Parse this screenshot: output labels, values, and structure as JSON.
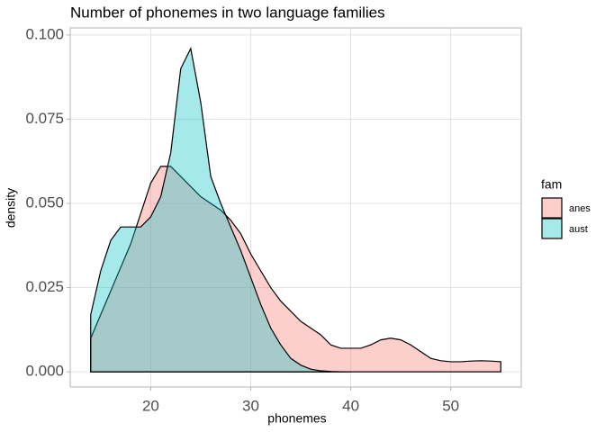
{
  "chart_data": {
    "type": "area",
    "title": "Number of phonemes in two language families",
    "x_label": "phonemes",
    "y_label": "density",
    "legend_title": "fam",
    "legend_position": "right",
    "x": [
      14,
      15,
      16,
      17,
      18,
      19,
      20,
      21,
      22,
      23,
      24,
      25,
      26,
      27,
      28,
      29,
      30,
      31,
      32,
      33,
      34,
      35,
      36,
      37,
      38,
      39,
      40,
      41,
      42,
      43,
      44,
      45,
      46,
      47,
      48,
      49,
      50,
      51,
      52,
      53,
      54,
      55
    ],
    "series": [
      {
        "name": "anes",
        "color": "#F8766D",
        "values": [
          0.01,
          0.017,
          0.024,
          0.031,
          0.038,
          0.047,
          0.056,
          0.061,
          0.061,
          0.058,
          0.055,
          0.052,
          0.05,
          0.048,
          0.045,
          0.041,
          0.035,
          0.03,
          0.025,
          0.021,
          0.018,
          0.015,
          0.013,
          0.011,
          0.008,
          0.007,
          0.007,
          0.007,
          0.008,
          0.0095,
          0.01,
          0.0095,
          0.008,
          0.006,
          0.004,
          0.0033,
          0.003,
          0.003,
          0.0032,
          0.0033,
          0.0032,
          0.003
        ]
      },
      {
        "name": "aust",
        "color": "#00BFC4",
        "values": [
          0.017,
          0.03,
          0.039,
          0.043,
          0.043,
          0.043,
          0.046,
          0.052,
          0.065,
          0.09,
          0.096,
          0.08,
          0.058,
          0.05,
          0.043,
          0.036,
          0.028,
          0.02,
          0.013,
          0.008,
          0.004,
          0.002,
          0.0008,
          0.0003,
          0.0001,
          0,
          0,
          null,
          null,
          null,
          null,
          null,
          null,
          null,
          null,
          null,
          null,
          null,
          null,
          null,
          null,
          null
        ]
      }
    ],
    "xlim": [
      11.95,
      57.05
    ],
    "xticks": [
      20,
      30,
      40,
      50
    ],
    "ylim": [
      -0.0045,
      0.1021
    ],
    "yticks": [
      {
        "value": 0,
        "label": "0.000"
      },
      {
        "value": 0.025,
        "label": "0.025"
      },
      {
        "value": 0.05,
        "label": "0.050"
      },
      {
        "value": 0.075,
        "label": "0.075"
      },
      {
        "value": 0.1,
        "label": "0.100"
      }
    ],
    "grid": true,
    "fill_opacity": 0.35
  }
}
